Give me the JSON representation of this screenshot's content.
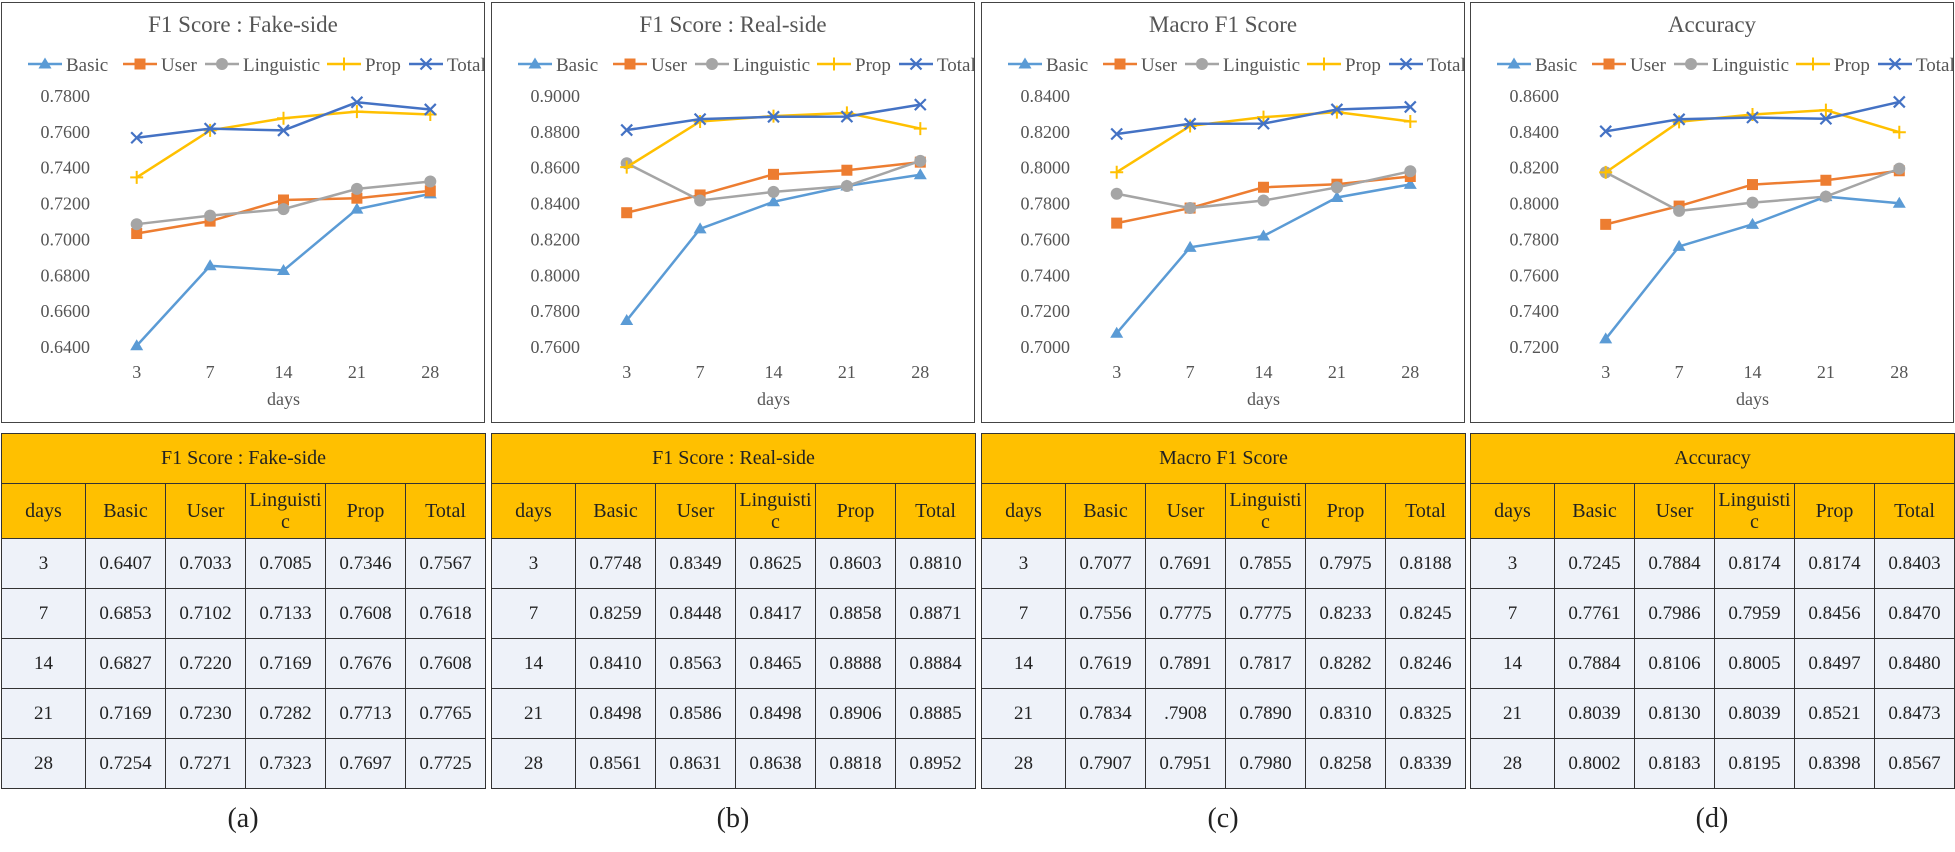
{
  "x_axis_label": "days",
  "table_headers": [
    "days",
    "Basic",
    "User",
    "Linguistic",
    "Prop",
    "Total"
  ],
  "table_days": [
    "3",
    "7",
    "14",
    "21",
    "28"
  ],
  "colors": {
    "Basic": "#5B9BD5",
    "User": "#ED7D31",
    "Linguistic": "#A5A5A5",
    "Prop": "#FFC000",
    "Total": "#4472C4",
    "table_header": "#FFC000",
    "table_cell": "#EEF2F9"
  },
  "panels": [
    {
      "caption": "(a)",
      "table_title": "F1 Score : Fake-side",
      "table_rows": [
        [
          "3",
          "0.6407",
          "0.7033",
          "0.7085",
          "0.7346",
          "0.7567"
        ],
        [
          "7",
          "0.6853",
          "0.7102",
          "0.7133",
          "0.7608",
          "0.7618"
        ],
        [
          "14",
          "0.6827",
          "0.7220",
          "0.7169",
          "0.7676",
          "0.7608"
        ],
        [
          "21",
          "0.7169",
          "0.7230",
          "0.7282",
          "0.7713",
          "0.7765"
        ],
        [
          "28",
          "0.7254",
          "0.7271",
          "0.7323",
          "0.7697",
          "0.7725"
        ]
      ]
    },
    {
      "caption": "(b)",
      "table_title": "F1 Score : Real-side",
      "table_rows": [
        [
          "3",
          "0.7748",
          "0.8349",
          "0.8625",
          "0.8603",
          "0.8810"
        ],
        [
          "7",
          "0.8259",
          "0.8448",
          "0.8417",
          "0.8858",
          "0.8871"
        ],
        [
          "14",
          "0.8410",
          "0.8563",
          "0.8465",
          "0.8888",
          "0.8884"
        ],
        [
          "21",
          "0.8498",
          "0.8586",
          "0.8498",
          "0.8906",
          "0.8885"
        ],
        [
          "28",
          "0.8561",
          "0.8631",
          "0.8638",
          "0.8818",
          "0.8952"
        ]
      ]
    },
    {
      "caption": "(c)",
      "table_title": "Macro F1 Score",
      "table_rows": [
        [
          "3",
          "0.7077",
          "0.7691",
          "0.7855",
          "0.7975",
          "0.8188"
        ],
        [
          "7",
          "0.7556",
          "0.7775",
          "0.7775",
          "0.8233",
          "0.8245"
        ],
        [
          "14",
          "0.7619",
          "0.7891",
          "0.7817",
          "0.8282",
          "0.8246"
        ],
        [
          "21",
          "0.7834",
          ".7908",
          "0.7890",
          "0.8310",
          "0.8325"
        ],
        [
          "28",
          "0.7907",
          "0.7951",
          "0.7980",
          "0.8258",
          "0.8339"
        ]
      ]
    },
    {
      "caption": "(d)",
      "table_title": "Accuracy",
      "table_rows": [
        [
          "3",
          "0.7245",
          "0.7884",
          "0.8174",
          "0.8174",
          "0.8403"
        ],
        [
          "7",
          "0.7761",
          "0.7986",
          "0.7959",
          "0.8456",
          "0.8470"
        ],
        [
          "14",
          "0.7884",
          "0.8106",
          "0.8005",
          "0.8497",
          "0.8480"
        ],
        [
          "21",
          "0.8039",
          "0.8130",
          "0.8039",
          "0.8521",
          "0.8473"
        ],
        [
          "28",
          "0.8002",
          "0.8183",
          "0.8195",
          "0.8398",
          "0.8567"
        ]
      ]
    }
  ],
  "chart_data": [
    {
      "type": "line",
      "title": "F1 Score : Fake-side",
      "xlabel": "days",
      "ylabel": "",
      "categories": [
        "3",
        "7",
        "14",
        "21",
        "28"
      ],
      "ylim": [
        0.64,
        0.78
      ],
      "yticks": [
        "0.6400",
        "0.6600",
        "0.6800",
        "0.7000",
        "0.7200",
        "0.7400",
        "0.7600",
        "0.7800"
      ],
      "legend": "top",
      "series": [
        {
          "name": "Basic",
          "marker": "triangle",
          "color": "#5B9BD5",
          "values": [
            0.6407,
            0.6853,
            0.6827,
            0.7169,
            0.7254
          ]
        },
        {
          "name": "User",
          "marker": "square",
          "color": "#ED7D31",
          "values": [
            0.7033,
            0.7102,
            0.722,
            0.723,
            0.7271
          ]
        },
        {
          "name": "Linguistic",
          "marker": "circle",
          "color": "#A5A5A5",
          "values": [
            0.7085,
            0.7133,
            0.7169,
            0.7282,
            0.7323
          ]
        },
        {
          "name": "Prop",
          "marker": "plus",
          "color": "#FFC000",
          "values": [
            0.7346,
            0.7608,
            0.7676,
            0.7713,
            0.7697
          ]
        },
        {
          "name": "Total",
          "marker": "x",
          "color": "#4472C4",
          "values": [
            0.7567,
            0.7618,
            0.7608,
            0.7765,
            0.7725
          ]
        }
      ]
    },
    {
      "type": "line",
      "title": "F1 Score : Real-side",
      "xlabel": "days",
      "ylabel": "",
      "categories": [
        "3",
        "7",
        "14",
        "21",
        "28"
      ],
      "ylim": [
        0.76,
        0.9
      ],
      "yticks": [
        "0.7600",
        "0.7800",
        "0.8000",
        "0.8200",
        "0.8400",
        "0.8600",
        "0.8800",
        "0.9000"
      ],
      "legend": "top",
      "series": [
        {
          "name": "Basic",
          "marker": "triangle",
          "color": "#5B9BD5",
          "values": [
            0.7748,
            0.8259,
            0.841,
            0.8498,
            0.8561
          ]
        },
        {
          "name": "User",
          "marker": "square",
          "color": "#ED7D31",
          "values": [
            0.8349,
            0.8448,
            0.8563,
            0.8586,
            0.8631
          ]
        },
        {
          "name": "Linguistic",
          "marker": "circle",
          "color": "#A5A5A5",
          "values": [
            0.8625,
            0.8417,
            0.8465,
            0.8498,
            0.8638
          ]
        },
        {
          "name": "Prop",
          "marker": "plus",
          "color": "#FFC000",
          "values": [
            0.8603,
            0.8858,
            0.8888,
            0.8906,
            0.8818
          ]
        },
        {
          "name": "Total",
          "marker": "x",
          "color": "#4472C4",
          "values": [
            0.881,
            0.8871,
            0.8884,
            0.8885,
            0.8952
          ]
        }
      ]
    },
    {
      "type": "line",
      "title": "Macro F1 Score",
      "xlabel": "days",
      "ylabel": "",
      "categories": [
        "3",
        "7",
        "14",
        "21",
        "28"
      ],
      "ylim": [
        0.7,
        0.84
      ],
      "yticks": [
        "0.7000",
        "0.7200",
        "0.7400",
        "0.7600",
        "0.7800",
        "0.8000",
        "0.8200",
        "0.8400"
      ],
      "legend": "top",
      "series": [
        {
          "name": "Basic",
          "marker": "triangle",
          "color": "#5B9BD5",
          "values": [
            0.7077,
            0.7556,
            0.7619,
            0.7834,
            0.7907
          ]
        },
        {
          "name": "User",
          "marker": "square",
          "color": "#ED7D31",
          "values": [
            0.7691,
            0.7775,
            0.7891,
            0.7908,
            0.7951
          ]
        },
        {
          "name": "Linguistic",
          "marker": "circle",
          "color": "#A5A5A5",
          "values": [
            0.7855,
            0.7775,
            0.7817,
            0.789,
            0.798
          ]
        },
        {
          "name": "Prop",
          "marker": "plus",
          "color": "#FFC000",
          "values": [
            0.7975,
            0.8233,
            0.8282,
            0.831,
            0.8258
          ]
        },
        {
          "name": "Total",
          "marker": "x",
          "color": "#4472C4",
          "values": [
            0.8188,
            0.8245,
            0.8246,
            0.8325,
            0.8339
          ]
        }
      ]
    },
    {
      "type": "line",
      "title": "Accuracy",
      "xlabel": "days",
      "ylabel": "",
      "categories": [
        "3",
        "7",
        "14",
        "21",
        "28"
      ],
      "ylim": [
        0.72,
        0.86
      ],
      "yticks": [
        "0.7200",
        "0.7400",
        "0.7600",
        "0.7800",
        "0.8000",
        "0.8200",
        "0.8400",
        "0.8600"
      ],
      "legend": "top",
      "series": [
        {
          "name": "Basic",
          "marker": "triangle",
          "color": "#5B9BD5",
          "values": [
            0.7245,
            0.7761,
            0.7884,
            0.8039,
            0.8002
          ]
        },
        {
          "name": "User",
          "marker": "square",
          "color": "#ED7D31",
          "values": [
            0.7884,
            0.7986,
            0.8106,
            0.813,
            0.8183
          ]
        },
        {
          "name": "Linguistic",
          "marker": "circle",
          "color": "#A5A5A5",
          "values": [
            0.8174,
            0.7959,
            0.8005,
            0.8039,
            0.8195
          ]
        },
        {
          "name": "Prop",
          "marker": "plus",
          "color": "#FFC000",
          "values": [
            0.8174,
            0.8456,
            0.8497,
            0.8521,
            0.8398
          ]
        },
        {
          "name": "Total",
          "marker": "x",
          "color": "#4472C4",
          "values": [
            0.8403,
            0.847,
            0.848,
            0.8473,
            0.8567
          ]
        }
      ]
    }
  ]
}
